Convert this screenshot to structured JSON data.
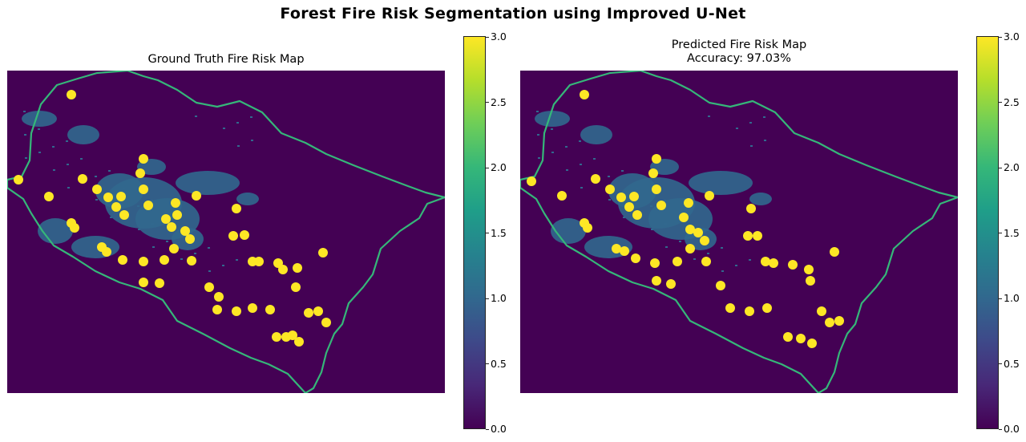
{
  "figure": {
    "suptitle": "Forest Fire Risk Segmentation using Improved U-Net"
  },
  "panels": [
    {
      "title": "Ground Truth Fire Risk Map",
      "subtitle": ""
    },
    {
      "title": "Predicted Fire Risk Map",
      "subtitle": "Accuracy: 97.03%"
    }
  ],
  "colormap": {
    "name": "viridis",
    "stops": [
      "#440154",
      "#482878",
      "#3e4989",
      "#31688e",
      "#26828e",
      "#1f9e89",
      "#35b779",
      "#6ece58",
      "#b5de2b",
      "#fde725"
    ],
    "background": "#440154",
    "class_1": "#31688e",
    "class_2": "#35b779",
    "class_3": "#fde725"
  },
  "chart_data": {
    "type": "heatmap",
    "title": "Forest Fire Risk Segmentation using Improved U-Net",
    "value_range": [
      0.0,
      3.0
    ],
    "colorbar_ticks": [
      "0.0",
      "0.5",
      "1.0",
      "1.5",
      "2.0",
      "2.5",
      "3.0"
    ],
    "classes": [
      0,
      1,
      2,
      3
    ],
    "panels": [
      {
        "name": "Ground Truth Fire Risk Map",
        "accuracy": null
      },
      {
        "name": "Predicted Fire Risk Map",
        "accuracy": "97.03%"
      }
    ],
    "grid": false,
    "axes_visible": false
  }
}
